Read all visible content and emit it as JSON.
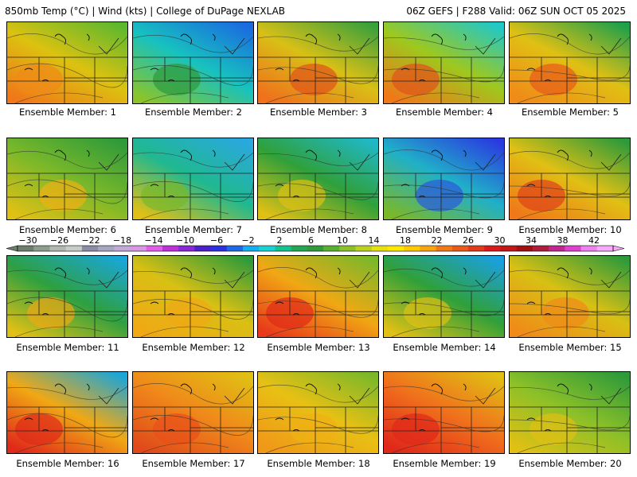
{
  "header": {
    "left": "850mb Temp (°C) | Wind (kts) | College of DuPage NEXLAB",
    "right": "06Z GEFS | F288 Valid: 06Z SUN OCT 05 2025"
  },
  "members": [
    {
      "label": "Ensemble Member: 1",
      "fill": "#f08a18",
      "grad": [
        "#5cb82e",
        "#dcc210",
        "#f07818"
      ]
    },
    {
      "label": "Ensemble Member: 2",
      "fill": "#2f9a3a",
      "grad": [
        "#1a6ae0",
        "#17c2bf",
        "#8ac42a"
      ]
    },
    {
      "label": "Ensemble Member: 3",
      "fill": "#e0521a",
      "grad": [
        "#3aa03c",
        "#d8c016",
        "#f0701c"
      ]
    },
    {
      "label": "Ensemble Member: 4",
      "fill": "#e0521a",
      "grad": [
        "#20c8c8",
        "#9ec81e",
        "#f07818"
      ]
    },
    {
      "label": "Ensemble Member: 5",
      "fill": "#e85a1a",
      "grad": [
        "#1fa04a",
        "#e0c014",
        "#f08a18"
      ]
    },
    {
      "label": "Ensemble Member: 6",
      "fill": "#f0b014",
      "grad": [
        "#2e9a3a",
        "#7ab82a",
        "#e0c014"
      ]
    },
    {
      "label": "Ensemble Member: 7",
      "fill": "#7ab82a",
      "grad": [
        "#2aa8e0",
        "#20b890",
        "#e0c014"
      ]
    },
    {
      "label": "Ensemble Member: 8",
      "fill": "#e0c014",
      "grad": [
        "#20b8c8",
        "#30a03a",
        "#e0c014"
      ]
    },
    {
      "label": "Ensemble Member: 9",
      "fill": "#2a58e0",
      "grad": [
        "#2a3ae0",
        "#20b0c8",
        "#7ab82a"
      ]
    },
    {
      "label": "Ensemble Member: 10",
      "fill": "#e0401a",
      "grad": [
        "#2e9a3a",
        "#e0c014",
        "#f07818"
      ]
    },
    {
      "label": "Ensemble Member: 11",
      "fill": "#f0a814",
      "grad": [
        "#1aa6d8",
        "#2ea040",
        "#e0c014"
      ]
    },
    {
      "label": "Ensemble Member: 12",
      "fill": "#f0a814",
      "grad": [
        "#2e9a3a",
        "#d8c014",
        "#f0a814"
      ]
    },
    {
      "label": "Ensemble Member: 13",
      "fill": "#e02a1a",
      "grad": [
        "#7ab82a",
        "#f0a814",
        "#e83a1a"
      ]
    },
    {
      "label": "Ensemble Member: 14",
      "fill": "#e0c014",
      "grad": [
        "#1aa0e0",
        "#30a03a",
        "#e0c014"
      ]
    },
    {
      "label": "Ensemble Member: 15",
      "fill": "#f08a18",
      "grad": [
        "#2e9a3a",
        "#d8c014",
        "#f08a18"
      ]
    },
    {
      "label": "Ensemble Member: 16",
      "fill": "#e02a1a",
      "grad": [
        "#1aa6d8",
        "#f0a814",
        "#e02a1a"
      ]
    },
    {
      "label": "Ensemble Member: 17",
      "fill": "#e8501a",
      "grad": [
        "#e0c014",
        "#f0881a",
        "#e04a1a"
      ]
    },
    {
      "label": "Ensemble Member: 18",
      "fill": "#f0b014",
      "grad": [
        "#7ab82a",
        "#e8c014",
        "#f09818"
      ]
    },
    {
      "label": "Ensemble Member: 19",
      "fill": "#e0281a",
      "grad": [
        "#e0c014",
        "#f0701c",
        "#e0281a"
      ]
    },
    {
      "label": "Ensemble Member: 20",
      "fill": "#e0c014",
      "grad": [
        "#2e9a3a",
        "#8cc028",
        "#e0c014"
      ]
    }
  ],
  "colorbar": {
    "ticks": [
      "−30",
      "−26",
      "−22",
      "−18",
      "−14",
      "−10",
      "−6",
      "−2",
      "2",
      "6",
      "10",
      "14",
      "18",
      "22",
      "26",
      "30",
      "34",
      "38",
      "42"
    ],
    "colors": [
      "#6d7e6d",
      "#8d9d8d",
      "#b0b8b0",
      "#c8ccc8",
      "#8c8ca8",
      "#a6a6c0",
      "#c0a8d8",
      "#d896e6",
      "#e35ce8",
      "#c030d8",
      "#8a28d8",
      "#4a20c8",
      "#2c30e0",
      "#1e6ae6",
      "#14aef0",
      "#18d2d2",
      "#14c290",
      "#22a852",
      "#2e9a3a",
      "#58b030",
      "#8cc028",
      "#bcd020",
      "#e6e010",
      "#ffe800",
      "#ffc800",
      "#f8a410",
      "#f07818",
      "#e85a1a",
      "#e03a1a",
      "#d81a1a",
      "#c01818",
      "#a01010",
      "#b01c3c",
      "#c02890",
      "#e040d0",
      "#f080f0",
      "#f8a8f8"
    ]
  }
}
